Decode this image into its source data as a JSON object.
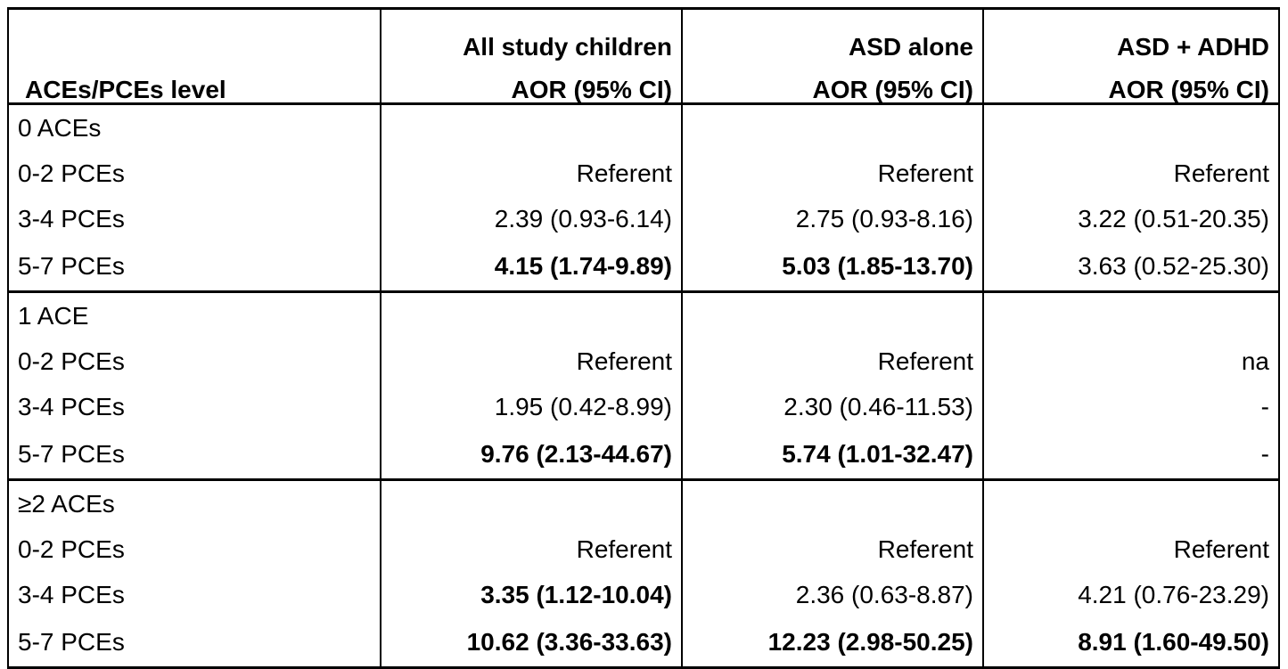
{
  "table": {
    "headers": {
      "col0": "ACEs/PCEs level",
      "col1_line1": "All study children",
      "col1_line2": "AOR (95% CI)",
      "col2_line1": "ASD alone",
      "col2_line2": "AOR (95% CI)",
      "col3_line1": "ASD + ADHD",
      "col3_line2": "AOR (95% CI)"
    },
    "groups": [
      {
        "label": "0 ACEs",
        "rows": [
          {
            "label": "0-2 PCEs",
            "all": "Referent",
            "asd": "Referent",
            "adhd": "Referent"
          },
          {
            "label": "3-4 PCEs",
            "all": "2.39 (0.93-6.14)",
            "asd": "2.75 (0.93-8.16)",
            "adhd": "3.22 (0.51-20.35)"
          },
          {
            "label": "5-7 PCEs",
            "all": "4.15 (1.74-9.89)",
            "asd": "5.03 (1.85-13.70)",
            "adhd": "3.63 (0.52-25.30)"
          }
        ]
      },
      {
        "label": "1 ACE",
        "rows": [
          {
            "label": "0-2 PCEs",
            "all": "Referent",
            "asd": "Referent",
            "adhd": "na"
          },
          {
            "label": "3-4 PCEs",
            "all": "1.95 (0.42-8.99)",
            "asd": "2.30 (0.46-11.53)",
            "adhd": "-"
          },
          {
            "label": "5-7 PCEs",
            "all": "9.76 (2.13-44.67)",
            "asd": "5.74 (1.01-32.47)",
            "adhd": "-"
          }
        ]
      },
      {
        "label": "≥2 ACEs",
        "rows": [
          {
            "label": "0-2 PCEs",
            "all": "Referent",
            "asd": "Referent",
            "adhd": "Referent"
          },
          {
            "label": "3-4 PCEs",
            "all": "3.35 (1.12-10.04)",
            "asd": "2.36 (0.63-8.87)",
            "adhd": "4.21 (0.76-23.29)"
          },
          {
            "label": "5-7 PCEs",
            "all": "10.62 (3.36-33.63)",
            "asd": "12.23 (2.98-50.25)",
            "adhd": "8.91 (1.60-49.50)"
          }
        ]
      }
    ]
  }
}
